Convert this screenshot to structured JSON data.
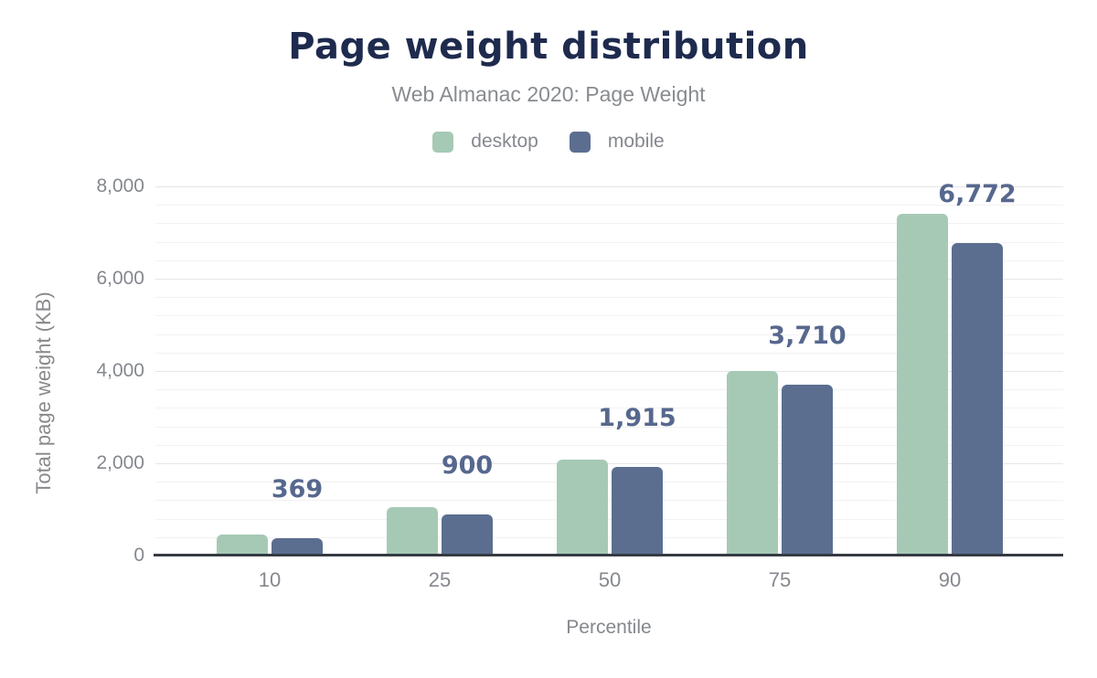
{
  "title": "Page weight distribution",
  "subtitle": "Web Almanac 2020: Page Weight",
  "legend": [
    {
      "label": "desktop",
      "color": "#a6c9b6"
    },
    {
      "label": "mobile",
      "color": "#5b6e90"
    }
  ],
  "colors": {
    "title": "#1e2b4e",
    "secondary_text": "#85888e",
    "data_label": "#57688e",
    "desktop_bar": "#a6c9b6",
    "mobile_bar": "#5b6e90",
    "axis_line": "#363b42",
    "major_gridline": "#e6e6e6",
    "minor_gridline": "#f2f2f2"
  },
  "chart_data": {
    "type": "bar",
    "title": "Page weight distribution",
    "subtitle": "Web Almanac 2020: Page Weight",
    "categories": [
      "10",
      "25",
      "50",
      "75",
      "90"
    ],
    "series": [
      {
        "name": "desktop",
        "color": "#a6c9b6",
        "values": [
          460,
          1050,
          2080,
          4000,
          7400
        ]
      },
      {
        "name": "mobile",
        "color": "#5b6e90",
        "values": [
          369,
          900,
          1915,
          3710,
          6772
        ]
      }
    ],
    "data_labels": {
      "series": "mobile",
      "values": [
        "369",
        "900",
        "1,915",
        "3,710",
        "6,772"
      ]
    },
    "xlabel": "Percentile",
    "ylabel": "Total page weight (KB)",
    "ylim": [
      0,
      8000
    ],
    "ytick_interval": 2000,
    "minor_gridline_interval": 400,
    "yticks": [
      "0",
      "2,000",
      "4,000",
      "6,000",
      "8,000"
    ],
    "grid": "on",
    "legend_position": "top"
  }
}
